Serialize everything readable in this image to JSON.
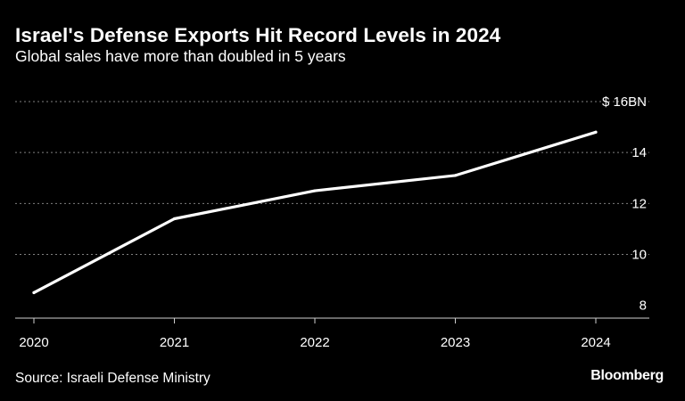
{
  "header": {
    "title": "Israel's Defense Exports Hit Record Levels in 2024",
    "subtitle": "Global sales have more than doubled in 5 years"
  },
  "footer": {
    "source": "Source: Israeli Defense Ministry",
    "brand": "Bloomberg"
  },
  "colors": {
    "background": "#000000",
    "line": "#ffffff",
    "grid": "#7f7f7f",
    "text": "#ffffff"
  },
  "chart_data": {
    "type": "line",
    "title": "Israel's Defense Exports Hit Record Levels in 2024",
    "subtitle": "Global sales have more than doubled in 5 years",
    "xlabel": "",
    "ylabel": "",
    "x": [
      2020,
      2021,
      2022,
      2023,
      2024
    ],
    "x_tick_labels": [
      "2020",
      "2021",
      "2022",
      "2023",
      "2024"
    ],
    "series": [
      {
        "values": [
          8.5,
          11.4,
          12.5,
          13.1,
          14.8
        ]
      }
    ],
    "ylim": [
      7.5,
      16
    ],
    "y_ticks": [
      8,
      10,
      12,
      14,
      16
    ],
    "y_tick_labels": [
      "8",
      "10",
      "12",
      "14",
      "$ 16BN"
    ],
    "grid": true,
    "grid_style": "dotted horizontal",
    "y_axis_position": "right",
    "legend": "none"
  }
}
